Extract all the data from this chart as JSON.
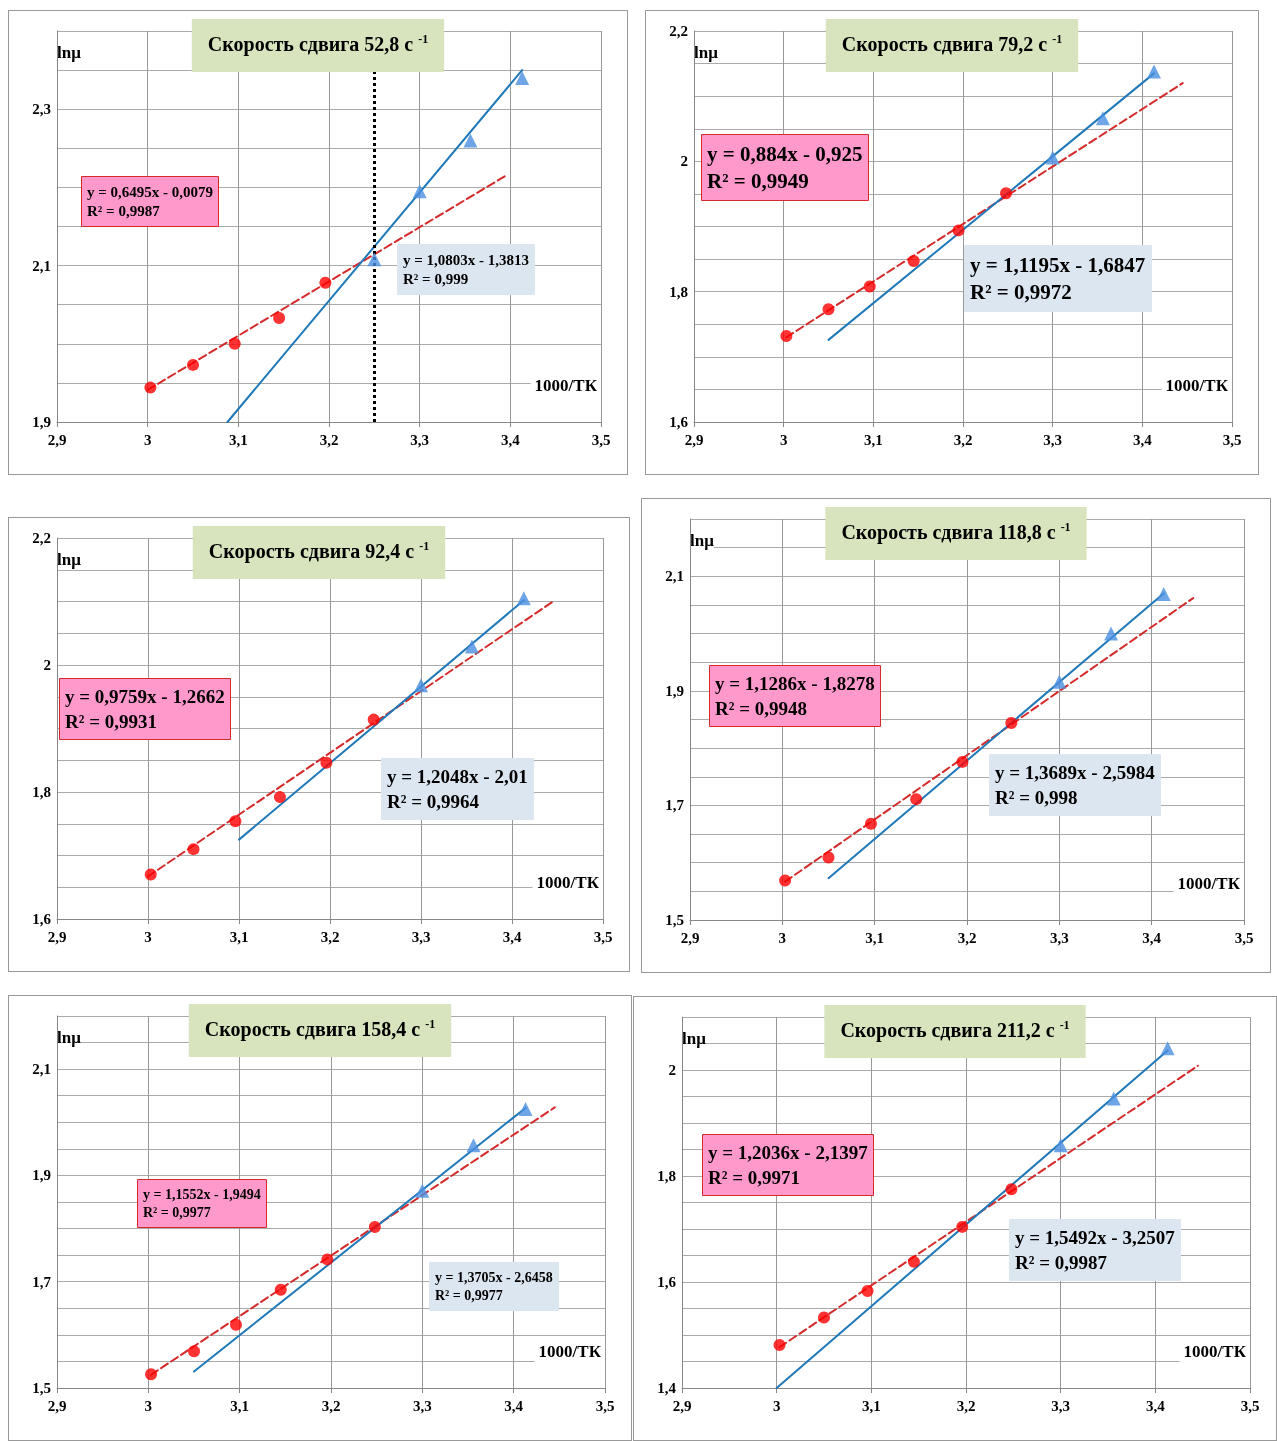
{
  "chart_data": [
    {
      "type": "scatter",
      "title": "Скорость сдвига 52,8 с $^{-1}$",
      "xlabel": "1000/ТК",
      "ylabel": "lnμ",
      "grid": true,
      "xlim": [
        2.9,
        3.5
      ],
      "xticks": [
        {
          "value": 2.9,
          "label": "2,9"
        },
        {
          "value": 3,
          "label": "3"
        },
        {
          "value": 3.1,
          "label": "3,1"
        },
        {
          "value": 3.2,
          "label": "3,2"
        },
        {
          "value": 3.3,
          "label": "3,3"
        },
        {
          "value": 3.4,
          "label": "3,4"
        },
        {
          "value": 3.5,
          "label": "3,5"
        }
      ],
      "ylim": [
        1.9,
        2.4
      ],
      "yticks": [
        {
          "value": 1.9,
          "label": "1,9"
        },
        {
          "value": 1.95,
          "label": null
        },
        {
          "value": 2,
          "label": null
        },
        {
          "value": 2.05,
          "label": null
        },
        {
          "value": 2.1,
          "label": "2,1"
        },
        {
          "value": 2.15,
          "label": null
        },
        {
          "value": 2.2,
          "label": null
        },
        {
          "value": 2.25,
          "label": null
        },
        {
          "value": 2.3,
          "label": "2,3"
        },
        {
          "value": 2.35,
          "label": null
        },
        {
          "value": 2.4,
          "label": null
        }
      ],
      "series": [
        {
          "type": "scatter",
          "color": "#ff0000",
          "marker": "circle",
          "x": [
            3.003,
            3.05,
            3.096,
            3.145,
            3.196
          ],
          "values": [
            1.944,
            1.973,
            2.0,
            2.033,
            2.078
          ]
        },
        {
          "type": "scatter",
          "color": "#4a8ee0",
          "marker": "triangle",
          "x": [
            3.25,
            3.3,
            3.356,
            3.413
          ],
          "values": [
            2.108,
            2.195,
            2.26,
            2.34
          ]
        },
        {
          "type": "line",
          "color": "#d42a2a",
          "marker": "none",
          "line_style": "dashed",
          "x": [
            3.0,
            3.395
          ],
          "values": [
            1.941,
            2.215
          ]
        },
        {
          "type": "line",
          "color": "#1f78b8",
          "marker": "none",
          "line_style": "solid",
          "x": [
            3.088,
            3.413
          ],
          "values": [
            1.9,
            2.35
          ]
        }
      ],
      "ref_lines": [
        {
          "axis": "x",
          "value": 3.25,
          "color": "#000000",
          "line_style": "dotted"
        }
      ],
      "annotations": [
        "y = 0,6495x - 0,0079\nR² = 0,9987",
        "y = 1,0803x - 1,3813\nR² = 0,999"
      ]
    },
    {
      "type": "scatter",
      "title": "Скорость сдвига 79,2 с $^{-1}$",
      "xlabel": "1000/ТК",
      "ylabel": "lnμ",
      "grid": true,
      "xlim": [
        2.9,
        3.5
      ],
      "xticks": [
        {
          "value": 2.9,
          "label": "2,9"
        },
        {
          "value": 3,
          "label": "3"
        },
        {
          "value": 3.1,
          "label": "3,1"
        },
        {
          "value": 3.2,
          "label": "3,2"
        },
        {
          "value": 3.3,
          "label": "3,3"
        },
        {
          "value": 3.4,
          "label": "3,4"
        },
        {
          "value": 3.5,
          "label": "3,5"
        }
      ],
      "ylim": [
        1.6,
        2.2
      ],
      "yticks": [
        {
          "value": 1.6,
          "label": "1,6"
        },
        {
          "value": 1.65,
          "label": null
        },
        {
          "value": 1.7,
          "label": null
        },
        {
          "value": 1.75,
          "label": null
        },
        {
          "value": 1.8,
          "label": "1,8"
        },
        {
          "value": 1.85,
          "label": null
        },
        {
          "value": 1.9,
          "label": null
        },
        {
          "value": 1.95,
          "label": null
        },
        {
          "value": 2,
          "label": "2"
        },
        {
          "value": 2.05,
          "label": null
        },
        {
          "value": 2.1,
          "label": null
        },
        {
          "value": 2.15,
          "label": null
        },
        {
          "value": 2.2,
          "label": "2,2"
        }
      ],
      "series": [
        {
          "type": "scatter",
          "color": "#ff0000",
          "marker": "circle",
          "x": [
            3.003,
            3.05,
            3.096,
            3.145,
            3.195,
            3.248
          ],
          "values": [
            1.732,
            1.773,
            1.808,
            1.847,
            1.894,
            1.951
          ]
        },
        {
          "type": "scatter",
          "color": "#4a8ee0",
          "marker": "triangle",
          "x": [
            3.3,
            3.356,
            3.413
          ],
          "values": [
            2.006,
            2.066,
            2.138
          ]
        },
        {
          "type": "line",
          "color": "#d42a2a",
          "marker": "none",
          "line_style": "dashed",
          "x": [
            3.003,
            3.445
          ],
          "values": [
            1.73,
            2.12
          ]
        },
        {
          "type": "line",
          "color": "#1f78b8",
          "marker": "none",
          "line_style": "solid",
          "x": [
            3.05,
            3.413
          ],
          "values": [
            1.726,
            2.135
          ]
        }
      ],
      "annotations": [
        "y = 0,884x - 0,925\nR² = 0,9949",
        "y = 1,1195x - 1,6847\nR² = 0,9972"
      ]
    },
    {
      "type": "scatter",
      "title": "Скорость сдвига 92,4 с $^{-1}$",
      "xlabel": "1000/ТК",
      "ylabel": "lnμ",
      "grid": true,
      "xlim": [
        2.9,
        3.5
      ],
      "xticks": [
        {
          "value": 2.9,
          "label": "2,9"
        },
        {
          "value": 3,
          "label": "3"
        },
        {
          "value": 3.1,
          "label": "3,1"
        },
        {
          "value": 3.2,
          "label": "3,2"
        },
        {
          "value": 3.3,
          "label": "3,3"
        },
        {
          "value": 3.4,
          "label": "3,4"
        },
        {
          "value": 3.5,
          "label": "3,5"
        }
      ],
      "ylim": [
        1.6,
        2.2
      ],
      "yticks": [
        {
          "value": 1.6,
          "label": "1,6"
        },
        {
          "value": 1.65,
          "label": null
        },
        {
          "value": 1.7,
          "label": null
        },
        {
          "value": 1.75,
          "label": null
        },
        {
          "value": 1.8,
          "label": "1,8"
        },
        {
          "value": 1.85,
          "label": null
        },
        {
          "value": 1.9,
          "label": null
        },
        {
          "value": 1.95,
          "label": null
        },
        {
          "value": 2,
          "label": "2"
        },
        {
          "value": 2.05,
          "label": null
        },
        {
          "value": 2.1,
          "label": null
        },
        {
          "value": 2.15,
          "label": null
        },
        {
          "value": 2.2,
          "label": "2,2"
        }
      ],
      "series": [
        {
          "type": "scatter",
          "color": "#ff0000",
          "marker": "circle",
          "x": [
            3.003,
            3.05,
            3.096,
            3.145,
            3.196,
            3.248
          ],
          "values": [
            1.67,
            1.71,
            1.754,
            1.792,
            1.846,
            1.914
          ]
        },
        {
          "type": "scatter",
          "color": "#4a8ee0",
          "marker": "triangle",
          "x": [
            3.3,
            3.356,
            3.413
          ],
          "values": [
            1.968,
            2.029,
            2.105
          ]
        },
        {
          "type": "line",
          "color": "#d42a2a",
          "marker": "none",
          "line_style": "dashed",
          "x": [
            3.0,
            3.445
          ],
          "values": [
            1.667,
            2.1
          ]
        },
        {
          "type": "line",
          "color": "#1f78b8",
          "marker": "none",
          "line_style": "solid",
          "x": [
            3.1,
            3.413
          ],
          "values": [
            1.725,
            2.102
          ]
        }
      ],
      "annotations": [
        "y = 0,9759x - 1,2662\nR² = 0,9931",
        "y = 1,2048x - 2,01\nR² = 0,9964"
      ]
    },
    {
      "type": "scatter",
      "title": "Скорость сдвига 118,8 с $^{-1}$",
      "xlabel": "1000/ТК",
      "ylabel": "lnμ",
      "grid": true,
      "xlim": [
        2.9,
        3.5
      ],
      "xticks": [
        {
          "value": 2.9,
          "label": "2,9"
        },
        {
          "value": 3,
          "label": "3"
        },
        {
          "value": 3.1,
          "label": "3,1"
        },
        {
          "value": 3.2,
          "label": "3,2"
        },
        {
          "value": 3.3,
          "label": "3,3"
        },
        {
          "value": 3.4,
          "label": "3,4"
        },
        {
          "value": 3.5,
          "label": "3,5"
        }
      ],
      "ylim": [
        1.5,
        2.2
      ],
      "yticks": [
        {
          "value": 1.5,
          "label": "1,5"
        },
        {
          "value": 1.55,
          "label": null
        },
        {
          "value": 1.6,
          "label": null
        },
        {
          "value": 1.65,
          "label": null
        },
        {
          "value": 1.7,
          "label": "1,7"
        },
        {
          "value": 1.75,
          "label": null
        },
        {
          "value": 1.8,
          "label": null
        },
        {
          "value": 1.85,
          "label": null
        },
        {
          "value": 1.9,
          "label": "1,9"
        },
        {
          "value": 1.95,
          "label": null
        },
        {
          "value": 2,
          "label": null
        },
        {
          "value": 2.05,
          "label": null
        },
        {
          "value": 2.1,
          "label": "2,1"
        },
        {
          "value": 2.15,
          "label": null
        },
        {
          "value": 2.2,
          "label": null
        }
      ],
      "series": [
        {
          "type": "scatter",
          "color": "#ff0000",
          "marker": "circle",
          "x": [
            3.003,
            3.05,
            3.096,
            3.145,
            3.195,
            3.248
          ],
          "values": [
            1.569,
            1.609,
            1.668,
            1.711,
            1.776,
            1.844
          ]
        },
        {
          "type": "scatter",
          "color": "#4a8ee0",
          "marker": "triangle",
          "x": [
            3.3,
            3.356,
            3.413
          ],
          "values": [
            1.916,
            2.0,
            2.069
          ]
        },
        {
          "type": "line",
          "color": "#d42a2a",
          "marker": "none",
          "line_style": "dashed",
          "x": [
            3.003,
            3.445
          ],
          "values": [
            1.567,
            2.062
          ]
        },
        {
          "type": "line",
          "color": "#1f78b8",
          "marker": "none",
          "line_style": "solid",
          "x": [
            3.05,
            3.413
          ],
          "values": [
            1.573,
            2.07
          ]
        }
      ],
      "annotations": [
        "y = 1,1286x - 1,8278\nR² = 0,9948",
        "y = 1,3689x - 2,5984\nR² = 0,998"
      ]
    },
    {
      "type": "scatter",
      "title": "Скорость сдвига 158,4 с $^{-1}$",
      "xlabel": "1000/ТК",
      "ylabel": "lnμ",
      "grid": true,
      "xlim": [
        2.9,
        3.5
      ],
      "xticks": [
        {
          "value": 2.9,
          "label": "2,9"
        },
        {
          "value": 3,
          "label": "3"
        },
        {
          "value": 3.1,
          "label": "3,1"
        },
        {
          "value": 3.2,
          "label": "3,2"
        },
        {
          "value": 3.3,
          "label": "3,3"
        },
        {
          "value": 3.4,
          "label": "3,4"
        },
        {
          "value": 3.5,
          "label": "3,5"
        }
      ],
      "ylim": [
        1.5,
        2.2
      ],
      "yticks": [
        {
          "value": 1.5,
          "label": "1,5"
        },
        {
          "value": 1.55,
          "label": null
        },
        {
          "value": 1.6,
          "label": null
        },
        {
          "value": 1.65,
          "label": null
        },
        {
          "value": 1.7,
          "label": "1,7"
        },
        {
          "value": 1.75,
          "label": null
        },
        {
          "value": 1.8,
          "label": null
        },
        {
          "value": 1.85,
          "label": null
        },
        {
          "value": 1.9,
          "label": "1,9"
        },
        {
          "value": 1.95,
          "label": null
        },
        {
          "value": 2,
          "label": null
        },
        {
          "value": 2.05,
          "label": null
        },
        {
          "value": 2.1,
          "label": "2,1"
        },
        {
          "value": 2.15,
          "label": null
        },
        {
          "value": 2.2,
          "label": null
        }
      ],
      "series": [
        {
          "type": "scatter",
          "color": "#ff0000",
          "marker": "circle",
          "x": [
            3.003,
            3.05,
            3.096,
            3.145,
            3.196,
            3.248
          ],
          "values": [
            1.526,
            1.569,
            1.619,
            1.685,
            1.742,
            1.803
          ]
        },
        {
          "type": "scatter",
          "color": "#4a8ee0",
          "marker": "triangle",
          "x": [
            3.3,
            3.356,
            3.413
          ],
          "values": [
            1.871,
            1.957,
            2.025
          ]
        },
        {
          "type": "line",
          "color": "#d42a2a",
          "marker": "none",
          "line_style": "dashed",
          "x": [
            3.003,
            3.445
          ],
          "values": [
            1.525,
            2.028
          ]
        },
        {
          "type": "line",
          "color": "#1f78b8",
          "marker": "none",
          "line_style": "solid",
          "x": [
            3.05,
            3.413
          ],
          "values": [
            1.531,
            2.027
          ]
        }
      ],
      "annotations": [
        "y = 1,1552x - 1,9494\nR² = 0,9977",
        "y = 1,3705x - 2,6458\nR² = 0,9977"
      ]
    },
    {
      "type": "scatter",
      "title": "Скорость сдвига 211,2 с $^{-1}$",
      "xlabel": "1000/ТК",
      "ylabel": "lnμ",
      "grid": true,
      "xlim": [
        2.9,
        3.5
      ],
      "xticks": [
        {
          "value": 2.9,
          "label": "2,9"
        },
        {
          "value": 3,
          "label": "3"
        },
        {
          "value": 3.1,
          "label": "3,1"
        },
        {
          "value": 3.2,
          "label": "3,2"
        },
        {
          "value": 3.3,
          "label": "3,3"
        },
        {
          "value": 3.4,
          "label": "3,4"
        },
        {
          "value": 3.5,
          "label": "3,5"
        }
      ],
      "ylim": [
        1.4,
        2.1
      ],
      "yticks": [
        {
          "value": 1.4,
          "label": "1,4"
        },
        {
          "value": 1.45,
          "label": null
        },
        {
          "value": 1.5,
          "label": null
        },
        {
          "value": 1.55,
          "label": null
        },
        {
          "value": 1.6,
          "label": "1,6"
        },
        {
          "value": 1.65,
          "label": null
        },
        {
          "value": 1.7,
          "label": null
        },
        {
          "value": 1.75,
          "label": null
        },
        {
          "value": 1.8,
          "label": "1,8"
        },
        {
          "value": 1.85,
          "label": null
        },
        {
          "value": 1.9,
          "label": null
        },
        {
          "value": 1.95,
          "label": null
        },
        {
          "value": 2,
          "label": "2"
        },
        {
          "value": 2.05,
          "label": null
        },
        {
          "value": 2.1,
          "label": null
        }
      ],
      "series": [
        {
          "type": "scatter",
          "color": "#ff0000",
          "marker": "circle",
          "x": [
            3.003,
            3.05,
            3.096,
            3.145,
            3.196,
            3.248
          ],
          "values": [
            1.481,
            1.533,
            1.583,
            1.638,
            1.704,
            1.775
          ]
        },
        {
          "type": "scatter",
          "color": "#4a8ee0",
          "marker": "triangle",
          "x": [
            3.3,
            3.356,
            3.413
          ],
          "values": [
            1.858,
            1.946,
            2.041
          ]
        },
        {
          "type": "line",
          "color": "#d42a2a",
          "marker": "none",
          "line_style": "dashed",
          "x": [
            3.003,
            3.445
          ],
          "values": [
            1.477,
            2.008
          ]
        },
        {
          "type": "line",
          "color": "#1f78b8",
          "marker": "none",
          "line_style": "solid",
          "x": [
            3.0,
            3.413
          ],
          "values": [
            1.4,
            2.037
          ]
        }
      ],
      "annotations": [
        "y = 1,2036x - 2,1397\nR² = 0,9971",
        "y = 1,5492x - 3,2507\nR² = 0,9987"
      ]
    }
  ]
}
